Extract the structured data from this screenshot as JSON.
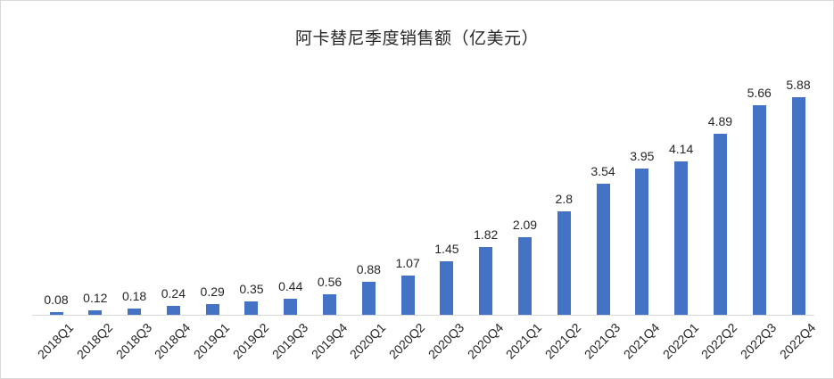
{
  "chart_data": {
    "type": "bar",
    "title": "阿卡替尼季度销售额（亿美元）",
    "categories": [
      "2018Q1",
      "2018Q2",
      "2018Q3",
      "2018Q4",
      "2019Q1",
      "2019Q2",
      "2019Q3",
      "2019Q4",
      "2020Q1",
      "2020Q2",
      "2020Q3",
      "2020Q4",
      "2021Q1",
      "2021Q2",
      "2021Q3",
      "2021Q4",
      "2022Q1",
      "2022Q2",
      "2022Q3",
      "2022Q4"
    ],
    "values": [
      0.08,
      0.12,
      0.18,
      0.24,
      0.29,
      0.35,
      0.44,
      0.56,
      0.88,
      1.07,
      1.45,
      1.82,
      2.09,
      2.8,
      3.54,
      3.95,
      4.14,
      4.89,
      5.66,
      5.88
    ],
    "value_labels": [
      "0.08",
      "0.12",
      "0.18",
      "0.24",
      "0.29",
      "0.35",
      "0.44",
      "0.56",
      "0.88",
      "1.07",
      "1.45",
      "1.82",
      "2.09",
      "2.8",
      "3.54",
      "3.95",
      "4.14",
      "4.89",
      "5.66",
      "5.88"
    ],
    "xlabel": "",
    "ylabel": "",
    "ylim": [
      0,
      6
    ],
    "grid": false,
    "legend": false,
    "data_labels_visible": true,
    "x_tick_rotation_deg": -45,
    "bar_color": "#4472C4",
    "axis_line_color": "#d9d9d9",
    "text_color": "#262626",
    "frame_border_color": "#d9d9d9"
  }
}
